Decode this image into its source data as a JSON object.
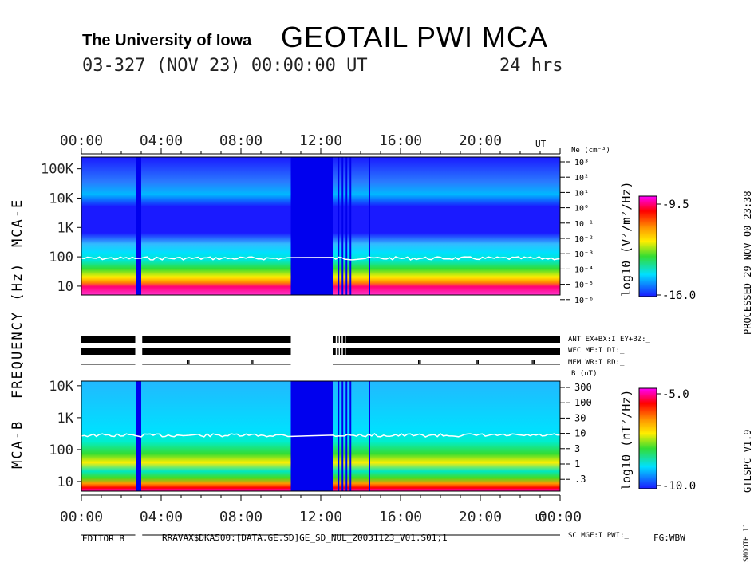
{
  "header": {
    "institution": "The University of Iowa",
    "title": "GEOTAIL PWI MCA",
    "date_line": "03-327 (NOV 23) 00:00:00 UT",
    "duration": "24 hrs"
  },
  "right_margin": {
    "processed": "PROCESSED 29-NOV-00  23:38",
    "version": "GTLSPC   V1.9",
    "smooth": "SMOOTH 11"
  },
  "footer": {
    "editor": "EDITOR B",
    "path": "RRAVAX$DKA500:[DATA.GE.SD]GE_SD_NUL_20031123_V01.S01;1",
    "fg": "FG:WBW"
  },
  "labels": {
    "frequency_axis": "FREQUENCY (Hz)",
    "panel_e": "MCA-E",
    "panel_b": "MCA-B",
    "ne_unit": "Ne (cm⁻³)",
    "b_unit": "B (nT)",
    "ut_top": "UT",
    "ut_bottom": "UT",
    "cbar_e_label": "log10 (V²/m²/Hz)",
    "cbar_b_label": "log10 (nT²/Hz)",
    "status_lines": [
      "ANT EX+BX:I  EY+BZ:_",
      "WFC ME:I     DI:_",
      "MEM WR:I     RD:_"
    ],
    "sc_line": "SC MGF:I   PWI:_"
  },
  "colors": {
    "background_blue": "#1a1aff",
    "deep_blue": "#0000ee",
    "cyan": "#00ccff",
    "green": "#33dd33",
    "yellow": "#ffee00",
    "orange": "#ff8800",
    "red": "#ff0000",
    "magenta": "#ff00ff",
    "ne_trace": "#ffffff"
  },
  "chart_data": [
    {
      "type": "heatmap",
      "name": "MCA-E",
      "x_label": "UT",
      "x_range_hours": [
        0,
        24
      ],
      "x_ticks": [
        "00:00",
        "04:00",
        "08:00",
        "12:00",
        "16:00",
        "20:00"
      ],
      "y_label": "FREQUENCY (Hz)",
      "y_scale": "log",
      "y_ticks": [
        "10",
        "100",
        "1K",
        "10K",
        "100K"
      ],
      "y_tick_values_hz": [
        10,
        100,
        1000,
        10000,
        100000
      ],
      "right_axis_label": "Ne (cm⁻³)",
      "right_axis_ticks": [
        "10³",
        "10²",
        "10¹",
        "10⁰",
        "10⁻¹",
        "10⁻²",
        "10⁻³",
        "10⁻⁴",
        "10⁻⁵",
        "10⁻⁶"
      ],
      "colorbar": {
        "label": "log10 (V²/m²/Hz)",
        "max": "-9.5",
        "min": "-16.0",
        "range": [
          -16.0,
          -9.5
        ]
      },
      "data_gaps_hours": [
        [
          2.75,
          3.0
        ],
        [
          10.5,
          12.6
        ]
      ]
    },
    {
      "type": "heatmap",
      "name": "MCA-B",
      "x_label": "UT",
      "x_range_hours": [
        0,
        24
      ],
      "x_ticks": [
        "00:00",
        "04:00",
        "08:00",
        "12:00",
        "16:00",
        "20:00",
        "00:00"
      ],
      "y_label": "FREQUENCY (Hz)",
      "y_scale": "log",
      "y_ticks": [
        "10",
        "100",
        "1K",
        "10K"
      ],
      "y_tick_values_hz": [
        10,
        100,
        1000,
        10000
      ],
      "right_axis_label": "B (nT)",
      "right_axis_ticks": [
        "300",
        "100",
        "30",
        "10",
        "3",
        "1",
        ".3"
      ],
      "colorbar": {
        "label": "log10 (nT²/Hz)",
        "max": "-5.0",
        "min": "-10.0",
        "range": [
          -10.0,
          -5.0
        ]
      },
      "data_gaps_hours": [
        [
          2.75,
          3.0
        ],
        [
          10.5,
          12.6
        ]
      ]
    }
  ]
}
